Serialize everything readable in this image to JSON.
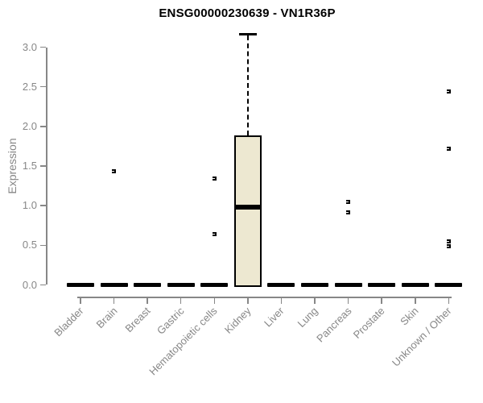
{
  "colors": {
    "background": "#ffffff",
    "title_text": "#000000",
    "axis_gray": "#878787",
    "box_fill": "#ede8d1",
    "box_line": "#000000"
  },
  "chart_data": {
    "type": "boxplot",
    "title": "ENSG00000230639 - VN1R36P",
    "ylabel": "Expression",
    "xlabel": "",
    "ylim": [
      0,
      3.2
    ],
    "yticks": [
      0.0,
      0.5,
      1.0,
      1.5,
      2.0,
      2.5,
      3.0
    ],
    "grid": false,
    "legend": "none",
    "categories": [
      "Bladder",
      "Brain",
      "Breast",
      "Gastric",
      "Hematopoietic cells",
      "Kidney",
      "Liver",
      "Lung",
      "Pancreas",
      "Prostate",
      "Skin",
      "Unknown / Other"
    ],
    "boxes": [
      {
        "category": "Bladder",
        "q1": 0,
        "median": 0,
        "q3": 0,
        "whisker_low": 0,
        "whisker_high": 0,
        "outliers": []
      },
      {
        "category": "Brain",
        "q1": 0,
        "median": 0,
        "q3": 0,
        "whisker_low": 0,
        "whisker_high": 0,
        "outliers": [
          1.43
        ]
      },
      {
        "category": "Breast",
        "q1": 0,
        "median": 0,
        "q3": 0,
        "whisker_low": 0,
        "whisker_high": 0,
        "outliers": []
      },
      {
        "category": "Gastric",
        "q1": 0,
        "median": 0,
        "q3": 0,
        "whisker_low": 0,
        "whisker_high": 0,
        "outliers": []
      },
      {
        "category": "Hematopoietic cells",
        "q1": 0,
        "median": 0,
        "q3": 0,
        "whisker_low": 0,
        "whisker_high": 0,
        "outliers": [
          1.34,
          0.64
        ]
      },
      {
        "category": "Kidney",
        "q1": 0,
        "median": 0.98,
        "q3": 1.89,
        "whisker_low": 0,
        "whisker_high": 3.16,
        "outliers": []
      },
      {
        "category": "Liver",
        "q1": 0,
        "median": 0,
        "q3": 0,
        "whisker_low": 0,
        "whisker_high": 0,
        "outliers": []
      },
      {
        "category": "Lung",
        "q1": 0,
        "median": 0,
        "q3": 0,
        "whisker_low": 0,
        "whisker_high": 0,
        "outliers": []
      },
      {
        "category": "Pancreas",
        "q1": 0,
        "median": 0,
        "q3": 0,
        "whisker_low": 0,
        "whisker_high": 0,
        "outliers": [
          1.05,
          0.92
        ]
      },
      {
        "category": "Prostate",
        "q1": 0,
        "median": 0,
        "q3": 0,
        "whisker_low": 0,
        "whisker_high": 0,
        "outliers": []
      },
      {
        "category": "Skin",
        "q1": 0,
        "median": 0,
        "q3": 0,
        "whisker_low": 0,
        "whisker_high": 0,
        "outliers": []
      },
      {
        "category": "Unknown / Other",
        "q1": 0,
        "median": 0,
        "q3": 0,
        "whisker_low": 0,
        "whisker_high": 0,
        "outliers": [
          2.44,
          1.72,
          0.55,
          0.49
        ]
      }
    ]
  }
}
